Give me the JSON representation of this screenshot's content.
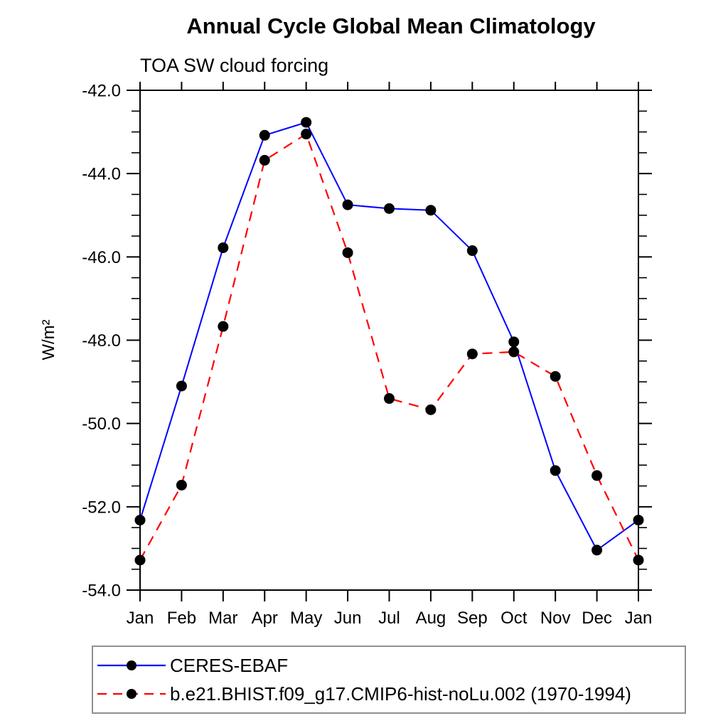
{
  "chart_data": {
    "type": "line",
    "title": "Annual Cycle Global Mean Climatology",
    "subtitle": "TOA SW cloud forcing",
    "ylabel": "W/m²",
    "xlabel": "",
    "categories": [
      "Jan",
      "Feb",
      "Mar",
      "Apr",
      "May",
      "Jun",
      "Jul",
      "Aug",
      "Sep",
      "Oct",
      "Nov",
      "Dec",
      "Jan"
    ],
    "series": [
      {
        "name": "CERES-EBAF",
        "color": "#0000ff",
        "line_style": "solid",
        "marker": "filled-circle",
        "marker_color": "#000000",
        "values": [
          -52.32,
          -49.1,
          -45.78,
          -43.08,
          -42.77,
          -44.75,
          -44.84,
          -44.88,
          -45.85,
          -48.04,
          -51.13,
          -53.04,
          -52.32
        ]
      },
      {
        "name": "b.e21.BHIST.f09_g17.CMIP6-hist-noLu.002 (1970-1994)",
        "color": "#ff0000",
        "line_style": "dashed",
        "marker": "filled-circle",
        "marker_color": "#000000",
        "values": [
          -53.28,
          -51.48,
          -47.67,
          -43.68,
          -43.05,
          -45.9,
          -49.4,
          -49.67,
          -48.33,
          -48.28,
          -48.87,
          -51.25,
          -53.28
        ]
      }
    ],
    "ylim": [
      -42.0,
      -54.0
    ],
    "ytick_major_step": 2.0,
    "ytick_minor_step": 0.5,
    "ytick_labels": [
      "-42.0",
      "-44.0",
      "-46.0",
      "-48.0",
      "-50.0",
      "-52.0",
      "-54.0"
    ],
    "grid": false,
    "frame_color": "#000000",
    "legend_position": "bottom-left-box",
    "legend_border_color": "#909090"
  }
}
